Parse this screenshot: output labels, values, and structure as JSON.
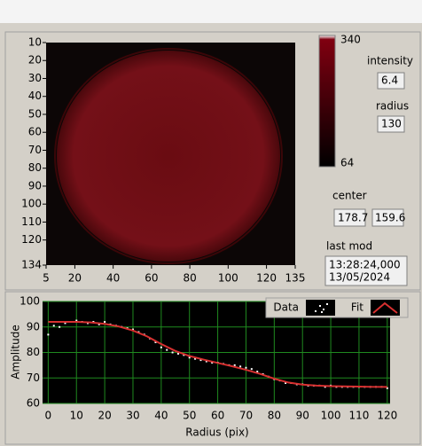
{
  "image": {
    "xlim": [
      5,
      135
    ],
    "ylim": [
      10,
      134
    ],
    "xticks": [
      5,
      20,
      40,
      60,
      80,
      100,
      120,
      135
    ],
    "yticks": [
      10,
      20,
      30,
      40,
      50,
      60,
      70,
      80,
      90,
      100,
      110,
      120,
      134
    ]
  },
  "colorbar": {
    "ticks": [
      340,
      64
    ]
  },
  "indicators": {
    "intensity": {
      "label": "intensity",
      "value": "6.4"
    },
    "radius": {
      "label": "radius",
      "value": "130"
    },
    "center": {
      "label": "center",
      "x": "178.7",
      "y": "159.6"
    },
    "last_mod": {
      "label": "last mod",
      "time": "13:28:24,000",
      "date": "13/05/2024"
    }
  },
  "chart_data": {
    "type": "scatter",
    "x_label": "Radius (pix)",
    "y_label": "Amplitude",
    "xlim": [
      -2,
      121
    ],
    "ylim": [
      60,
      100
    ],
    "xticks": [
      0,
      10,
      20,
      30,
      40,
      50,
      60,
      70,
      80,
      90,
      100,
      110,
      120
    ],
    "yticks": [
      60,
      70,
      80,
      90,
      100
    ],
    "grid": true,
    "series": [
      {
        "name": "Data",
        "color": "#ffffff",
        "mode": "points",
        "x": [
          0,
          2,
          4,
          6,
          8,
          10,
          12,
          14,
          16,
          18,
          20,
          22,
          24,
          26,
          28,
          30,
          32,
          34,
          36,
          38,
          40,
          42,
          44,
          46,
          48,
          50,
          52,
          54,
          56,
          58,
          60,
          62,
          64,
          66,
          68,
          70,
          72,
          74,
          76,
          78,
          80,
          82,
          84,
          86,
          88,
          90,
          92,
          94,
          96,
          98,
          100,
          102,
          104,
          106,
          108,
          110,
          112,
          114,
          116,
          118,
          120
        ],
        "values": [
          87,
          90.5,
          90,
          91.5,
          92,
          92.5,
          92,
          91.5,
          92,
          91,
          92,
          91,
          90.5,
          90,
          89.5,
          89,
          88,
          87,
          85.5,
          84,
          82,
          81,
          80,
          79.5,
          79,
          78,
          77.5,
          77,
          76.5,
          76,
          76,
          75.5,
          75,
          75,
          74.5,
          74,
          73.5,
          72.5,
          71.5,
          70.5,
          69.5,
          69,
          68,
          68,
          67.5,
          67.5,
          67,
          67,
          67,
          66.5,
          67,
          66.5,
          66.5,
          66.5,
          66.5,
          66.5,
          66.5,
          66.5,
          66.5,
          66.5,
          66
        ]
      },
      {
        "name": "Fit",
        "color": "#d83030",
        "mode": "line",
        "x": [
          0,
          5,
          10,
          15,
          20,
          25,
          30,
          35,
          40,
          45,
          50,
          55,
          60,
          65,
          70,
          75,
          80,
          85,
          90,
          95,
          100,
          105,
          110,
          115,
          120
        ],
        "values": [
          92,
          92,
          92,
          91.8,
          91.2,
          90.2,
          88.6,
          86.3,
          83.3,
          80.6,
          78.6,
          77.2,
          75.9,
          74.6,
          73.2,
          71.6,
          69.7,
          68.2,
          67.4,
          67,
          66.8,
          66.7,
          66.6,
          66.5,
          66.5
        ]
      }
    ]
  }
}
